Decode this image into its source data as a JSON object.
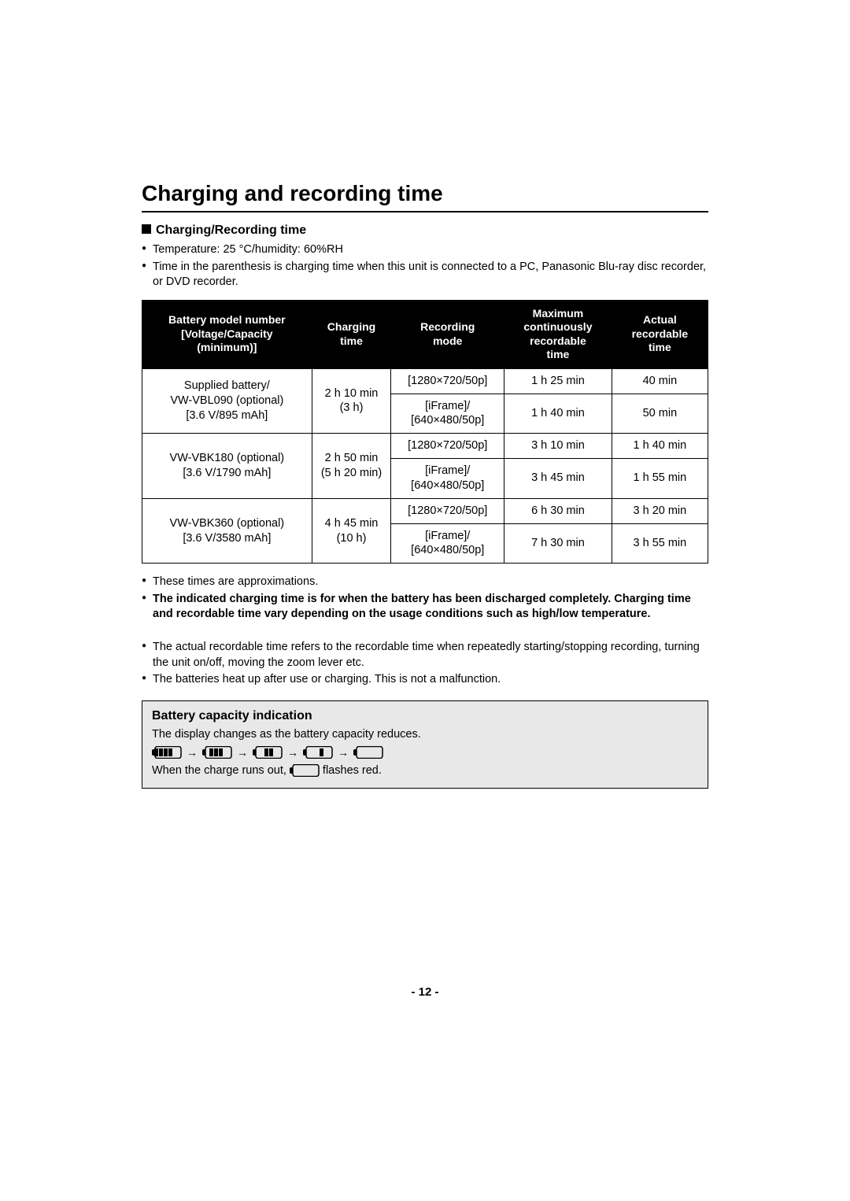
{
  "title": "Charging and recording time",
  "subheading": "Charging/Recording time",
  "preBullets": [
    "Temperature: 25 °C/humidity: 60%RH",
    "Time in the parenthesis is charging time when this unit is connected to a PC, Panasonic Blu-ray disc recorder, or DVD recorder."
  ],
  "table": {
    "headers": {
      "battery": "Battery model number\n[Voltage/Capacity\n(minimum)]",
      "charging": "Charging\ntime",
      "mode": "Recording\nmode",
      "max": "Maximum\ncontinuously\nrecordable\ntime",
      "actual": "Actual\nrecordable\ntime"
    },
    "groups": [
      {
        "battery": "Supplied battery/\nVW-VBL090 (optional)\n[3.6 V/895 mAh]",
        "charging": "2 h 10 min\n(3 h)",
        "rows": [
          {
            "mode": "[1280×720/50p]",
            "max": "1 h 25 min",
            "actual": "40 min"
          },
          {
            "mode": "[iFrame]/\n[640×480/50p]",
            "max": "1 h 40 min",
            "actual": "50 min"
          }
        ]
      },
      {
        "battery": "VW-VBK180 (optional)\n[3.6 V/1790 mAh]",
        "charging": "2 h 50 min\n(5 h 20 min)",
        "rows": [
          {
            "mode": "[1280×720/50p]",
            "max": "3 h 10 min",
            "actual": "1 h 40 min"
          },
          {
            "mode": "[iFrame]/\n[640×480/50p]",
            "max": "3 h 45 min",
            "actual": "1 h 55 min"
          }
        ]
      },
      {
        "battery": "VW-VBK360 (optional)\n[3.6 V/3580 mAh]",
        "charging": "4 h 45 min\n(10 h)",
        "rows": [
          {
            "mode": "[1280×720/50p]",
            "max": "6 h 30 min",
            "actual": "3 h 20 min"
          },
          {
            "mode": "[iFrame]/\n[640×480/50p]",
            "max": "7 h 30 min",
            "actual": "3 h 55 min"
          }
        ]
      }
    ]
  },
  "postBullets1": [
    {
      "text": "These times are approximations.",
      "bold": false
    },
    {
      "text": "The indicated charging time is for when the battery has been discharged completely. Charging time and recordable time vary depending on the usage conditions such as high/low temperature.",
      "bold": true
    }
  ],
  "postBullets2": [
    {
      "text": "The actual recordable time refers to the recordable time when repeatedly starting/stopping recording, turning the unit on/off, moving the zoom lever etc.",
      "bold": false
    },
    {
      "text": "The batteries heat up after use or charging. This is not a malfunction.",
      "bold": false
    }
  ],
  "capacity": {
    "title": "Battery capacity indication",
    "line1": "The display changes as the battery capacity reduces.",
    "line2a": "When the charge runs out, ",
    "line2b": " flashes red.",
    "levels": [
      4,
      3,
      2,
      1,
      0
    ],
    "iconStroke": "#000000",
    "iconFillEmpty": "#ffffff"
  },
  "pageNumber": "- 12 -",
  "colors": {
    "headerBg": "#000000",
    "headerFg": "#ffffff",
    "capacityBg": "#e8e8e8",
    "border": "#000000"
  }
}
